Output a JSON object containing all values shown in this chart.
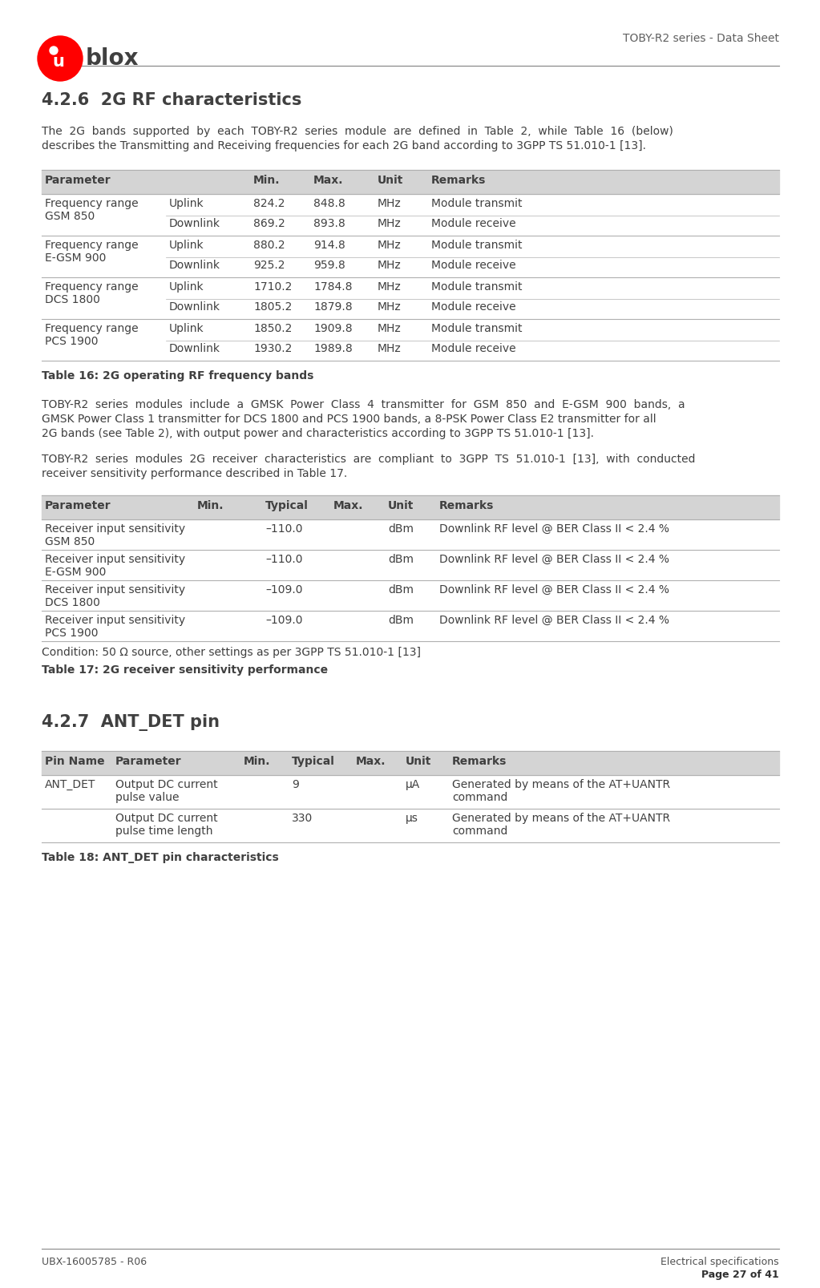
{
  "page_title": "TOBY-R2 series - Data Sheet",
  "section_title": "4.2.6  2G RF characteristics",
  "section_intro_line1": "The  2G  bands  supported  by  each  TOBY-R2  series  module  are  defined  in  Table  2,  while  Table  16  (below)",
  "section_intro_line2": "describes the Transmitting and Receiving frequencies for each 2G band according to 3GPP TS 51.010-1 [13].",
  "table16_caption": "Table 16: 2G operating RF frequency bands",
  "table16_col_headers": [
    "Parameter",
    "Min.",
    "Max.",
    "Unit",
    "Remarks"
  ],
  "table16_rows": [
    [
      "Frequency range",
      "GSM 850",
      "Uplink",
      "824.2",
      "848.8",
      "MHz",
      "Module transmit"
    ],
    [
      "",
      "",
      "Downlink",
      "869.2",
      "893.8",
      "MHz",
      "Module receive"
    ],
    [
      "Frequency range",
      "E-GSM 900",
      "Uplink",
      "880.2",
      "914.8",
      "MHz",
      "Module transmit"
    ],
    [
      "",
      "",
      "Downlink",
      "925.2",
      "959.8",
      "MHz",
      "Module receive"
    ],
    [
      "Frequency range",
      "DCS 1800",
      "Uplink",
      "1710.2",
      "1784.8",
      "MHz",
      "Module transmit"
    ],
    [
      "",
      "",
      "Downlink",
      "1805.2",
      "1879.8",
      "MHz",
      "Module receive"
    ],
    [
      "Frequency range",
      "PCS 1900",
      "Uplink",
      "1850.2",
      "1909.8",
      "MHz",
      "Module transmit"
    ],
    [
      "",
      "",
      "Downlink",
      "1930.2",
      "1989.8",
      "MHz",
      "Module receive"
    ]
  ],
  "para1_line1": "TOBY-R2  series  modules  include  a  GMSK  Power  Class  4  transmitter  for  GSM  850  and  E-GSM  900  bands,  a",
  "para1_line2": "GMSK Power Class 1 transmitter for DCS 1800 and PCS 1900 bands, a 8-PSK Power Class E2 transmitter for all",
  "para1_line3": "2G bands (see Table 2), with output power and characteristics according to 3GPP TS 51.010-1 [13].",
  "para2_line1": "TOBY-R2  series  modules  2G  receiver  characteristics  are  compliant  to  3GPP  TS  51.010-1  [13],  with  conducted",
  "para2_line2": "receiver sensitivity performance described in Table 17.",
  "table17_caption": "Table 17: 2G receiver sensitivity performance",
  "table17_col_headers": [
    "Parameter",
    "Min.",
    "Typical",
    "Max.",
    "Unit",
    "Remarks"
  ],
  "table17_rows": [
    [
      "Receiver input sensitivity",
      "GSM 850",
      "",
      "–110.0",
      "",
      "dBm",
      "Downlink RF level @ BER Class II < 2.4 %"
    ],
    [
      "Receiver input sensitivity",
      "E-GSM 900",
      "",
      "–110.0",
      "",
      "dBm",
      "Downlink RF level @ BER Class II < 2.4 %"
    ],
    [
      "Receiver input sensitivity",
      "DCS 1800",
      "",
      "–109.0",
      "",
      "dBm",
      "Downlink RF level @ BER Class II < 2.4 %"
    ],
    [
      "Receiver input sensitivity",
      "PCS 1900",
      "",
      "–109.0",
      "",
      "dBm",
      "Downlink RF level @ BER Class II < 2.4 %"
    ]
  ],
  "table17_condition": "Condition: 50 Ω source, other settings as per 3GPP TS 51.010-1 [13]",
  "section2_title": "4.2.7  ANT_DET pin",
  "table18_caption": "Table 18: ANT_DET pin characteristics",
  "table18_col_headers": [
    "Pin Name",
    "Parameter",
    "Min.",
    "Typical",
    "Max.",
    "Unit",
    "Remarks"
  ],
  "table18_rows": [
    [
      "ANT_DET",
      "Output DC current",
      "pulse value",
      "",
      "9",
      "",
      "µA",
      "Generated by means of the AT+UANTR",
      "command"
    ],
    [
      "",
      "Output DC current",
      "pulse time length",
      "",
      "330",
      "",
      "µs",
      "Generated by means of the AT+UANTR",
      "command"
    ]
  ],
  "footer_left": "UBX-16005785 - R06",
  "footer_right_top": "Electrical specifications",
  "footer_right_bot": "Page 27 of 41",
  "header_bg": "#d4d4d4",
  "text_color": "#404040",
  "line_color": "#b0b0b0",
  "bg_color": "#ffffff",
  "logo_red": "#ff0000",
  "logo_dot_color": "#ffffff"
}
